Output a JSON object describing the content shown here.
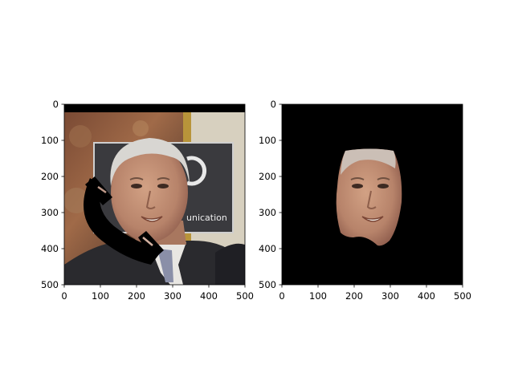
{
  "figure": {
    "panels": [
      {
        "name": "left",
        "image_desc": "face photo with black occluding arc",
        "x_ticks": [
          "0",
          "100",
          "200",
          "300",
          "400",
          "500"
        ],
        "y_ticks": [
          "0",
          "100",
          "200",
          "300",
          "400",
          "500"
        ],
        "sign_text": "unication"
      },
      {
        "name": "right",
        "image_desc": "segmented face on black background",
        "x_ticks": [
          "0",
          "100",
          "200",
          "300",
          "400",
          "500"
        ],
        "y_ticks": [
          "0",
          "100",
          "200",
          "300",
          "400",
          "500"
        ]
      }
    ]
  },
  "colors": {
    "background": "#ffffff",
    "axis": "#000000",
    "mask_black": "#000000",
    "skin": "#c49274",
    "skin_shadow": "#a0705a",
    "hair": "#d8d6d2",
    "suit": "#2a2a2e",
    "tie": "#8a8fa8",
    "sign": "#3a3a3e",
    "tapestry": "#8a5a3e",
    "wall": "#d9d2c0"
  }
}
